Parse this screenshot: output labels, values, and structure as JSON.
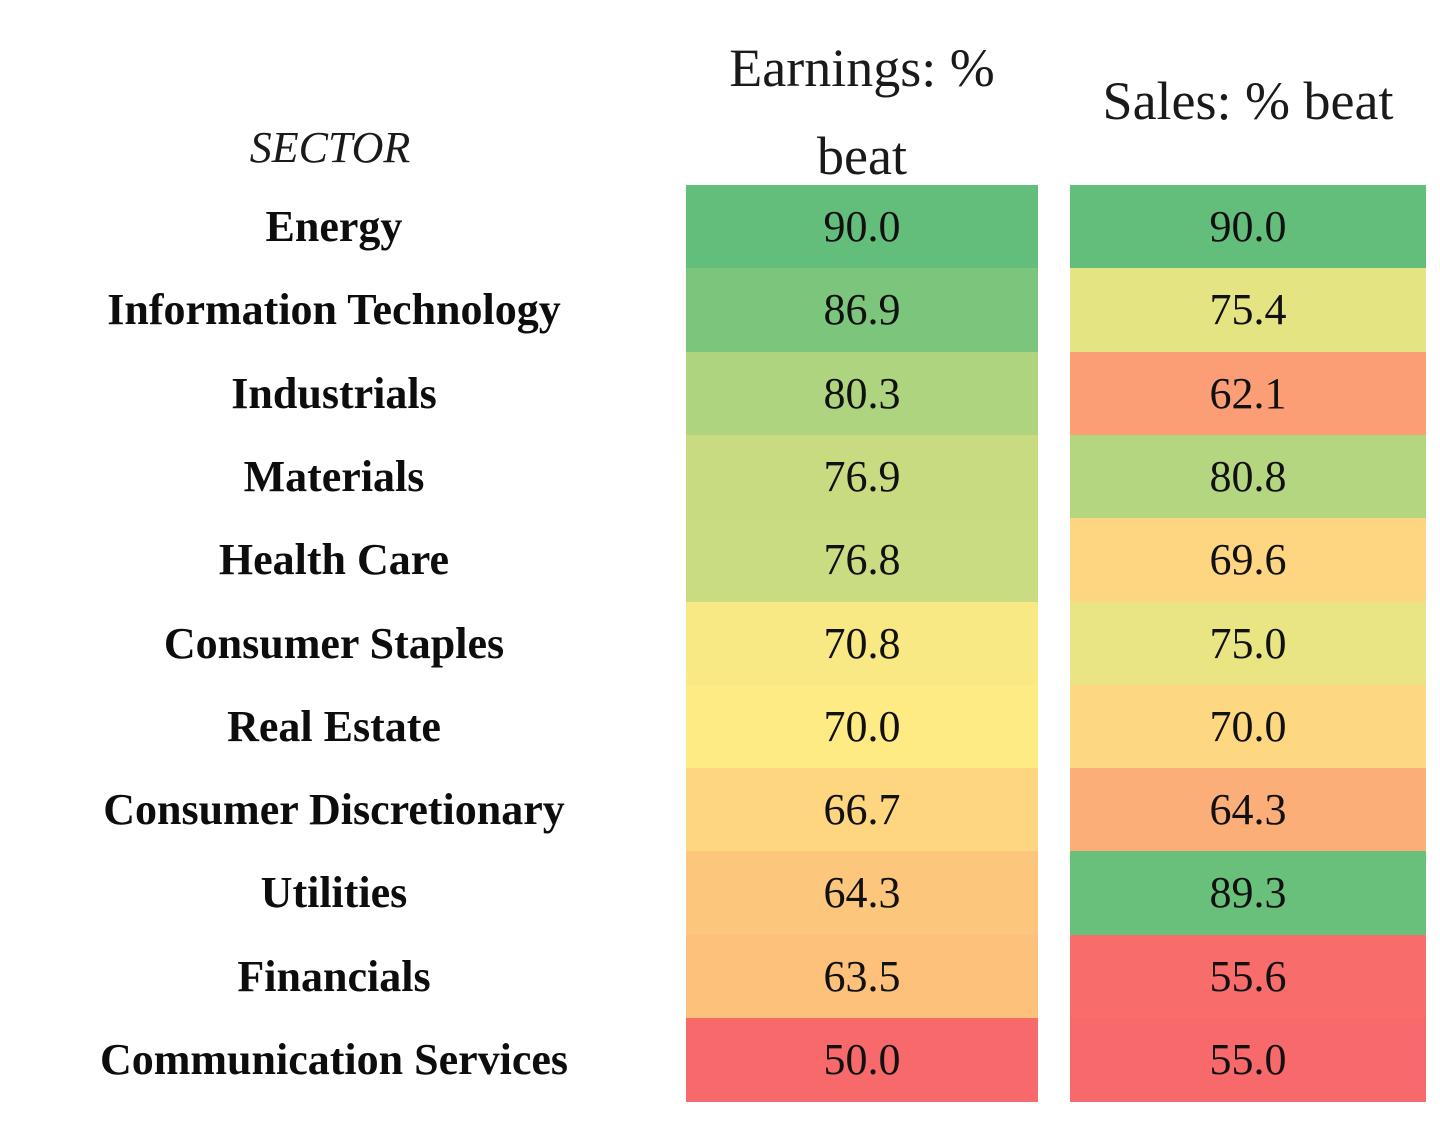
{
  "chart_data": {
    "type": "table",
    "columns": {
      "sector": "SECTOR",
      "earnings": "Earnings: % beat",
      "sales": "Sales: % beat"
    },
    "rows": [
      {
        "sector": "Energy",
        "earnings": "90.0",
        "sales": "90.0"
      },
      {
        "sector": "Information Technology",
        "earnings": "86.9",
        "sales": "75.4"
      },
      {
        "sector": "Industrials",
        "earnings": "80.3",
        "sales": "62.1"
      },
      {
        "sector": "Materials",
        "earnings": "76.9",
        "sales": "80.8"
      },
      {
        "sector": "Health Care",
        "earnings": "76.8",
        "sales": "69.6"
      },
      {
        "sector": "Consumer Staples",
        "earnings": "70.8",
        "sales": "75.0"
      },
      {
        "sector": "Real Estate",
        "earnings": "70.0",
        "sales": "70.0"
      },
      {
        "sector": "Consumer Discretionary",
        "earnings": "66.7",
        "sales": "64.3"
      },
      {
        "sector": "Utilities",
        "earnings": "64.3",
        "sales": "89.3"
      },
      {
        "sector": "Financials",
        "earnings": "63.5",
        "sales": "55.6"
      },
      {
        "sector": "Communication Services",
        "earnings": "50.0",
        "sales": "55.0"
      }
    ],
    "color_scale": {
      "low": "#f8696b",
      "mid": "#ffeb84",
      "high": "#63be7b"
    }
  }
}
